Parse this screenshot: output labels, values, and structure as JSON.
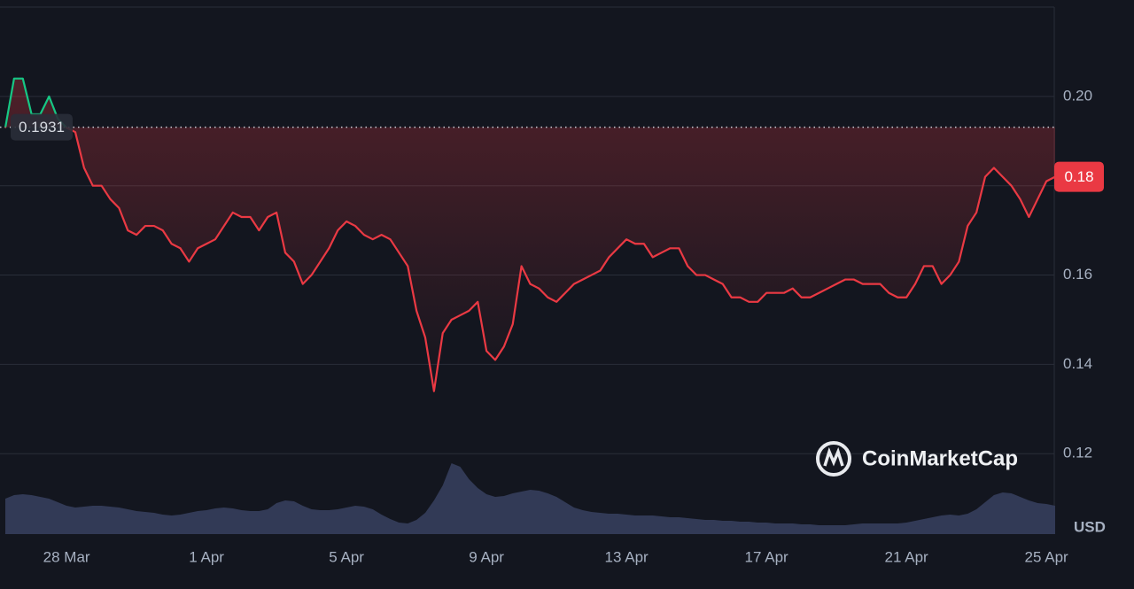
{
  "chart_data": {
    "type": "line",
    "watermark": "CoinMarketCap",
    "currency": "USD",
    "categories": [
      null,
      null,
      null,
      null,
      null,
      null,
      null,
      "28 Mar",
      null,
      null,
      null,
      null,
      null,
      null,
      null,
      null,
      null,
      null,
      null,
      null,
      null,
      null,
      null,
      "1 Apr",
      null,
      null,
      null,
      null,
      null,
      null,
      null,
      null,
      null,
      null,
      null,
      null,
      null,
      null,
      null,
      "5 Apr",
      null,
      null,
      null,
      null,
      null,
      null,
      null,
      null,
      null,
      null,
      null,
      null,
      null,
      null,
      null,
      "9 Apr",
      null,
      null,
      null,
      null,
      null,
      null,
      null,
      null,
      null,
      null,
      null,
      null,
      null,
      null,
      null,
      "13 Apr",
      null,
      null,
      null,
      null,
      null,
      null,
      null,
      null,
      null,
      null,
      null,
      null,
      null,
      null,
      null,
      "17 Apr",
      null,
      null,
      null,
      null,
      null,
      null,
      null,
      null,
      null,
      null,
      null,
      null,
      null,
      null,
      null,
      "21 Apr",
      null,
      null,
      null,
      null,
      null,
      null,
      null,
      null,
      null,
      null,
      null,
      null,
      null,
      null,
      null,
      "25 Apr",
      null
    ],
    "series": [
      {
        "name": "Price",
        "color": "#ea3943",
        "up_color": "#16c784",
        "values": [
          0.193,
          0.204,
          0.204,
          0.196,
          0.196,
          0.2,
          0.195,
          0.193,
          0.192,
          0.184,
          0.18,
          0.18,
          0.177,
          0.175,
          0.17,
          0.169,
          0.171,
          0.171,
          0.17,
          0.167,
          0.166,
          0.163,
          0.166,
          0.167,
          0.168,
          0.171,
          0.174,
          0.173,
          0.173,
          0.17,
          0.173,
          0.174,
          0.165,
          0.163,
          0.158,
          0.16,
          0.163,
          0.166,
          0.17,
          0.172,
          0.171,
          0.169,
          0.168,
          0.169,
          0.168,
          0.165,
          0.162,
          0.152,
          0.146,
          0.134,
          0.147,
          0.15,
          0.151,
          0.152,
          0.154,
          0.143,
          0.141,
          0.144,
          0.149,
          0.162,
          0.158,
          0.157,
          0.155,
          0.154,
          0.156,
          0.158,
          0.159,
          0.16,
          0.161,
          0.164,
          0.166,
          0.168,
          0.167,
          0.167,
          0.164,
          0.165,
          0.166,
          0.166,
          0.162,
          0.16,
          0.16,
          0.159,
          0.158,
          0.155,
          0.155,
          0.154,
          0.154,
          0.156,
          0.156,
          0.156,
          0.157,
          0.155,
          0.155,
          0.156,
          0.157,
          0.158,
          0.159,
          0.159,
          0.158,
          0.158,
          0.158,
          0.156,
          0.155,
          0.155,
          0.158,
          0.162,
          0.162,
          0.158,
          0.16,
          0.163,
          0.171,
          0.174,
          0.182,
          0.184,
          0.182,
          0.18,
          0.177,
          0.173,
          0.177,
          0.181,
          0.182
        ],
        "value_labels": [
          null,
          null,
          null,
          null,
          null,
          null,
          null,
          null,
          null,
          null,
          null,
          null,
          null,
          null,
          null,
          null,
          null,
          null,
          null,
          null,
          null,
          null,
          null,
          null,
          null,
          null,
          null,
          null,
          null,
          null,
          null,
          null,
          null,
          null,
          null,
          null,
          null,
          null,
          null,
          null,
          null,
          null,
          null,
          null,
          null,
          null,
          null,
          null,
          null,
          null,
          null,
          null,
          null,
          null,
          null,
          null,
          null,
          null,
          null,
          null,
          null,
          null,
          null,
          null,
          null,
          null,
          null,
          null,
          null,
          null,
          null,
          null,
          null,
          null,
          null,
          null,
          null,
          null,
          null,
          null,
          null,
          null,
          null,
          null,
          null,
          null,
          null,
          null,
          null,
          null,
          null,
          null,
          null,
          null,
          null,
          null,
          null,
          null,
          null,
          null,
          null,
          null,
          null,
          null,
          null,
          null,
          null,
          null,
          null,
          null,
          null,
          null,
          null,
          null,
          null,
          null,
          null,
          null,
          null,
          null,
          "0.18"
        ]
      }
    ],
    "reference": 0.1931,
    "ylim": [
      0.102,
      0.22
    ],
    "yticks": [
      0.12,
      0.14,
      0.16,
      0.18,
      {
        "value": 0.2,
        "label": "0.20"
      }
    ],
    "grid": true,
    "volume": {
      "name": "Volume",
      "color": "#323a56",
      "ylim": [
        0,
        100
      ],
      "values": [
        40,
        44,
        45,
        44,
        42,
        40,
        36,
        32,
        30,
        31,
        32,
        32,
        31,
        30,
        28,
        26,
        25,
        24,
        22,
        21,
        22,
        24,
        26,
        27,
        29,
        30,
        29,
        27,
        26,
        26,
        28,
        35,
        38,
        37,
        32,
        28,
        27,
        27,
        28,
        30,
        32,
        31,
        28,
        22,
        17,
        13,
        12,
        16,
        24,
        38,
        55,
        80,
        76,
        62,
        52,
        45,
        42,
        43,
        46,
        48,
        50,
        49,
        46,
        42,
        36,
        30,
        27,
        25,
        24,
        23,
        23,
        22,
        21,
        21,
        21,
        20,
        19,
        19,
        18,
        17,
        16,
        16,
        15,
        15,
        14,
        14,
        13,
        13,
        12,
        12,
        12,
        11,
        11,
        10,
        10,
        10,
        10,
        11,
        12,
        12,
        12,
        12,
        12,
        13,
        15,
        17,
        19,
        21,
        22,
        21,
        23,
        28,
        36,
        44,
        47,
        46,
        42,
        38,
        35,
        34,
        32
      ]
    }
  }
}
